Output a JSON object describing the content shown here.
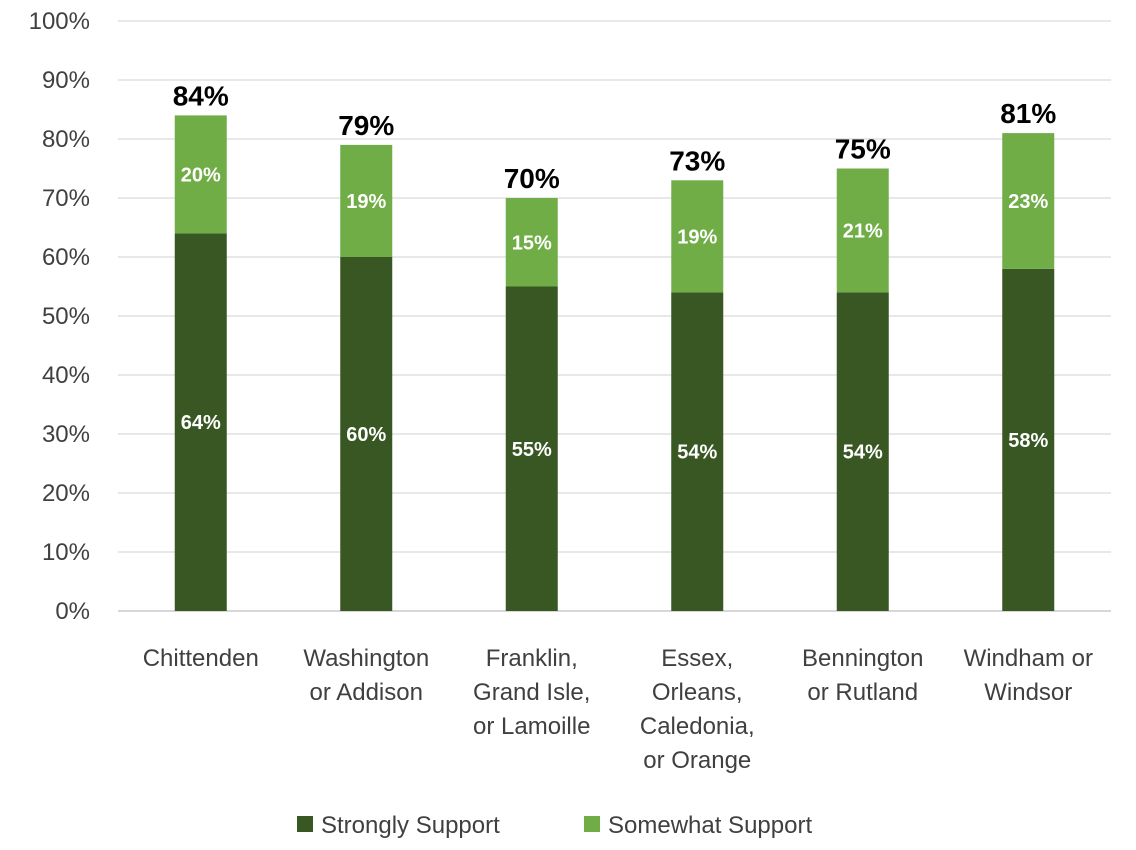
{
  "chart_data": {
    "type": "bar",
    "stacked": true,
    "title": "",
    "xlabel": "",
    "ylabel": "",
    "ylim": [
      0,
      100
    ],
    "y_ticks": [
      "0%",
      "10%",
      "20%",
      "30%",
      "40%",
      "50%",
      "60%",
      "70%",
      "80%",
      "90%",
      "100%"
    ],
    "grid": true,
    "legend_position": "bottom",
    "categories": [
      [
        "Chittenden"
      ],
      [
        "Washington",
        "or Addison"
      ],
      [
        "Franklin,",
        "Grand Isle,",
        "or Lamoille"
      ],
      [
        "Essex,",
        "Orleans,",
        "Caledonia,",
        "or Orange"
      ],
      [
        "Bennington",
        "or Rutland"
      ],
      [
        "Windham or",
        "Windsor"
      ]
    ],
    "series": [
      {
        "name": "Strongly Support",
        "color": "#385723",
        "values": [
          64,
          60,
          55,
          54,
          54,
          58
        ],
        "labels": [
          "64%",
          "60%",
          "55%",
          "54%",
          "54%",
          "58%"
        ]
      },
      {
        "name": "Somewhat Support",
        "color": "#70AD47",
        "values": [
          20,
          19,
          15,
          19,
          21,
          23
        ],
        "labels": [
          "20%",
          "19%",
          "15%",
          "19%",
          "21%",
          "23%"
        ]
      }
    ],
    "totals": [
      84,
      79,
      70,
      73,
      75,
      81
    ],
    "total_labels": [
      "84%",
      "79%",
      "70%",
      "73%",
      "75%",
      "81%"
    ]
  }
}
